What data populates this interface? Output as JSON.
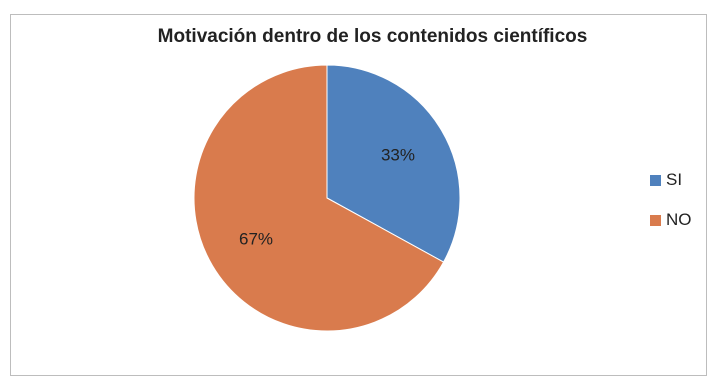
{
  "chart_data": {
    "type": "pie",
    "title": "Motivación dentro de los contenidos científicos",
    "categories": [
      "SI",
      "NO"
    ],
    "values": [
      33,
      67
    ],
    "data_labels": [
      "33%",
      "67%"
    ],
    "colors": [
      "#4f81bd",
      "#d97b4d"
    ],
    "legend_position": "right"
  }
}
